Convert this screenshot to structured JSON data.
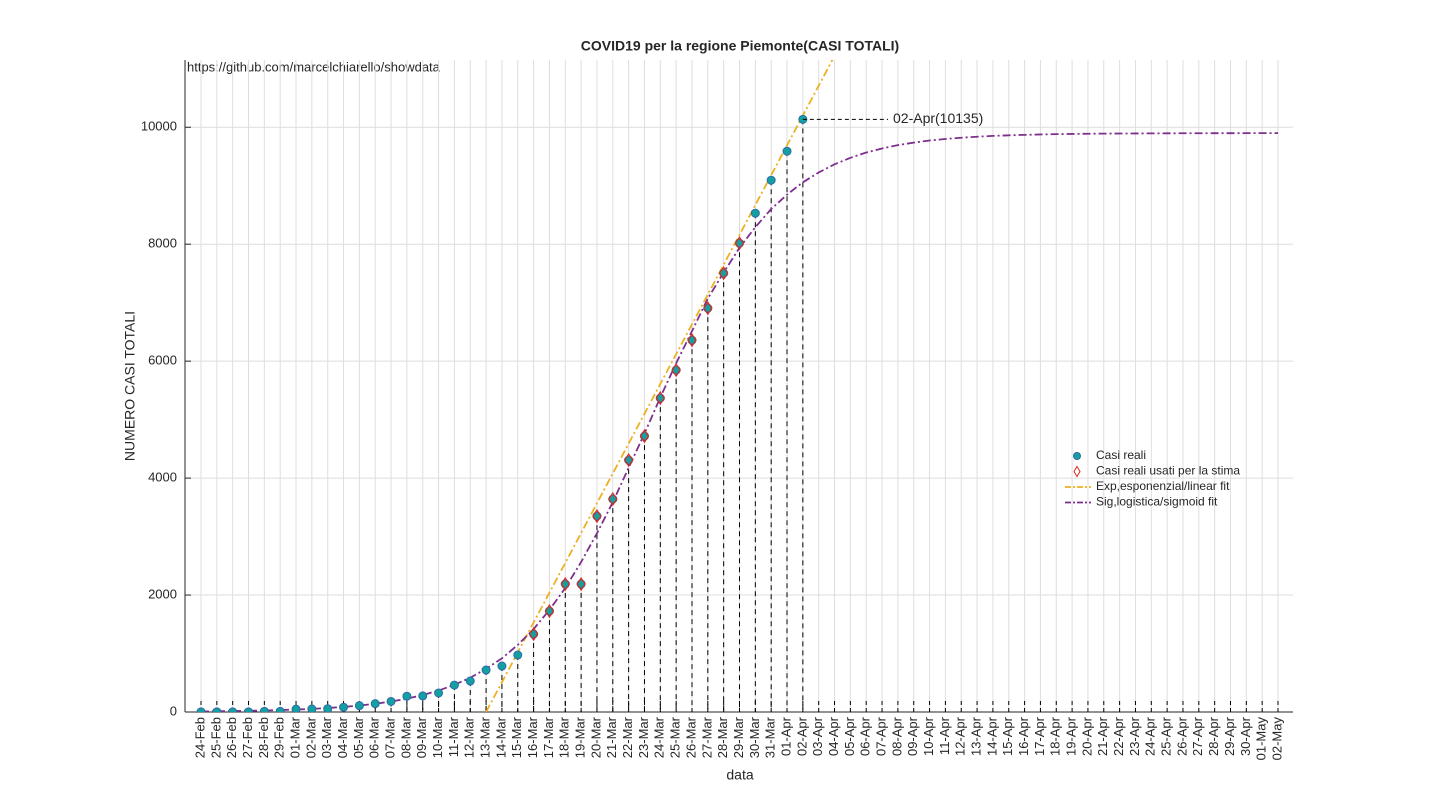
{
  "chart_data": {
    "type": "line",
    "title": "COVID19 per la regione Piemonte(CASI TOTALI)",
    "source": "https://github.com/marcelchiarello/showdata",
    "xlabel": "data",
    "ylabel": "NUMERO CASI TOTALI",
    "annotation": "02-Apr(10135)",
    "categories": [
      "24-Feb",
      "25-Feb",
      "26-Feb",
      "27-Feb",
      "28-Feb",
      "29-Feb",
      "01-Mar",
      "02-Mar",
      "03-Mar",
      "04-Mar",
      "05-Mar",
      "06-Mar",
      "07-Mar",
      "08-Mar",
      "09-Mar",
      "10-Mar",
      "11-Mar",
      "12-Mar",
      "13-Mar",
      "14-Mar",
      "15-Mar",
      "16-Mar",
      "17-Mar",
      "18-Mar",
      "19-Mar",
      "20-Mar",
      "21-Mar",
      "22-Mar",
      "23-Mar",
      "24-Mar",
      "25-Mar",
      "26-Mar",
      "27-Mar",
      "28-Mar",
      "29-Mar",
      "30-Mar",
      "31-Mar",
      "01-Apr",
      "02-Apr",
      "03-Apr",
      "04-Apr",
      "05-Apr",
      "06-Apr",
      "07-Apr",
      "08-Apr",
      "09-Apr",
      "10-Apr",
      "11-Apr",
      "12-Apr",
      "13-Apr",
      "14-Apr",
      "15-Apr",
      "16-Apr",
      "17-Apr",
      "18-Apr",
      "19-Apr",
      "20-Apr",
      "21-Apr",
      "22-Apr",
      "23-Apr",
      "24-Apr",
      "25-Apr",
      "26-Apr",
      "27-Apr",
      "28-Apr",
      "29-Apr",
      "30-Apr",
      "01-May",
      "02-May"
    ],
    "series": [
      {
        "name": "Casi reali",
        "kind": "points",
        "color": "#13a0a0",
        "values": [
          3,
          3,
          3,
          3,
          11,
          11,
          49,
          51,
          56,
          82,
          108,
          143,
          180,
          270,
          275,
          325,
          460,
          530,
          718,
          786,
          974,
          1333,
          1726,
          2188,
          2188,
          3350,
          3641,
          4308,
          4718,
          5368,
          5847,
          6359,
          6906,
          7504,
          8017,
          8530,
          9094,
          9590,
          10135,
          null,
          null,
          null,
          null,
          null,
          null,
          null,
          null,
          null,
          null,
          null,
          null,
          null,
          null,
          null,
          null,
          null,
          null,
          null,
          null,
          null,
          null,
          null,
          null,
          null,
          null,
          null,
          null,
          null,
          null
        ]
      },
      {
        "name": "Casi reali usati per la stima",
        "kind": "diamonds",
        "color": "#d92a1c",
        "values": [
          null,
          null,
          null,
          null,
          null,
          null,
          null,
          null,
          null,
          null,
          null,
          null,
          null,
          null,
          null,
          null,
          null,
          null,
          null,
          null,
          null,
          1333,
          1726,
          2188,
          2188,
          3350,
          3641,
          4308,
          4718,
          5368,
          5847,
          6359,
          6906,
          7504,
          8017,
          null,
          null,
          null,
          null,
          null,
          null,
          null,
          null,
          null,
          null,
          null,
          null,
          null,
          null,
          null,
          null,
          null,
          null,
          null,
          null,
          null,
          null,
          null,
          null,
          null,
          null,
          null,
          null,
          null,
          null,
          null,
          null,
          null,
          null
        ]
      },
      {
        "name": "Exp,esponenzial/linear fit",
        "kind": "line",
        "color": "#EDB120",
        "values": [
          null,
          null,
          null,
          null,
          null,
          null,
          null,
          null,
          null,
          null,
          null,
          null,
          null,
          null,
          null,
          null,
          null,
          null,
          0,
          510,
          1020,
          1530,
          2040,
          2550,
          3060,
          3570,
          4080,
          4590,
          5100,
          5610,
          6120,
          6630,
          7140,
          7650,
          8160,
          8670,
          9180,
          9690,
          10200,
          10710,
          11220,
          null,
          null,
          null,
          null,
          null,
          null,
          null,
          null,
          null,
          null,
          null,
          null,
          null,
          null,
          null,
          null,
          null,
          null,
          null,
          null,
          null,
          null,
          null,
          null,
          null,
          null,
          null,
          null
        ]
      },
      {
        "name": "Sig,logistica/sigmoid fit",
        "kind": "line",
        "color": "#7E2F8E",
        "values": [
          10,
          12,
          16,
          20,
          26,
          33,
          42,
          53,
          68,
          87,
          110,
          141,
          179,
          228,
          290,
          367,
          465,
          586,
          739,
          918,
          1147,
          1418,
          1746,
          2120,
          2565,
          3056,
          3587,
          4177,
          4760,
          5380,
          5964,
          6513,
          7071,
          7517,
          7939,
          8291,
          8601,
          8847,
          9058,
          9227,
          9366,
          9477,
          9568,
          9637,
          9694,
          9737,
          9773,
          9799,
          9821,
          9838,
          9852,
          9862,
          9870,
          9877,
          9882,
          9886,
          9889,
          9891,
          9893,
          9894,
          9895,
          9896,
          9897,
          9897,
          9898,
          9898,
          9899,
          9899,
          9899
        ]
      }
    ],
    "ylim": [
      0,
      11150
    ],
    "yticks": [
      0,
      2000,
      4000,
      6000,
      8000,
      10000
    ],
    "grid": true
  }
}
